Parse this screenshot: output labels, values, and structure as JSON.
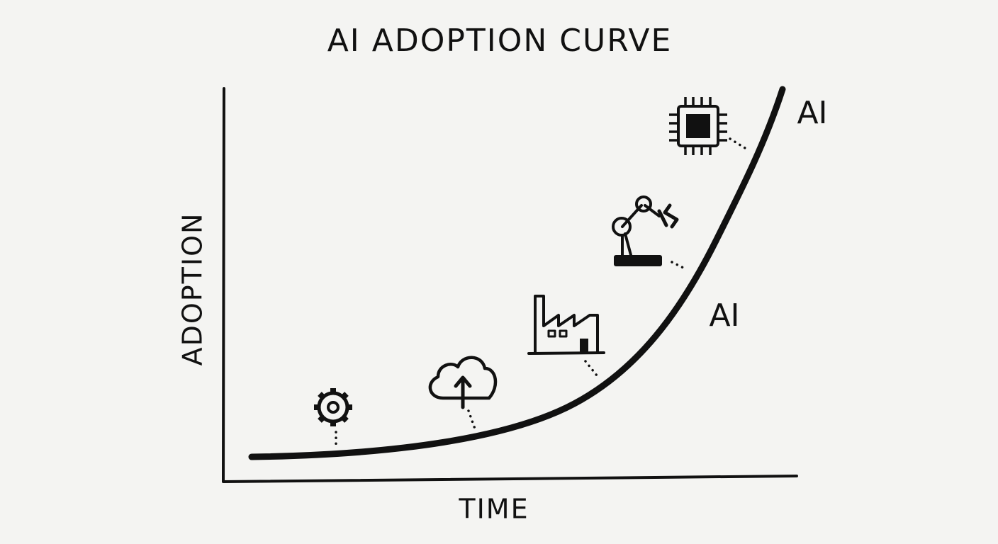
{
  "title": "AI ADOPTION CURVE",
  "axes": {
    "y_label": "ADOPTION",
    "x_label": "TIME"
  },
  "curve_labels": [
    "AI",
    "AI"
  ]
}
